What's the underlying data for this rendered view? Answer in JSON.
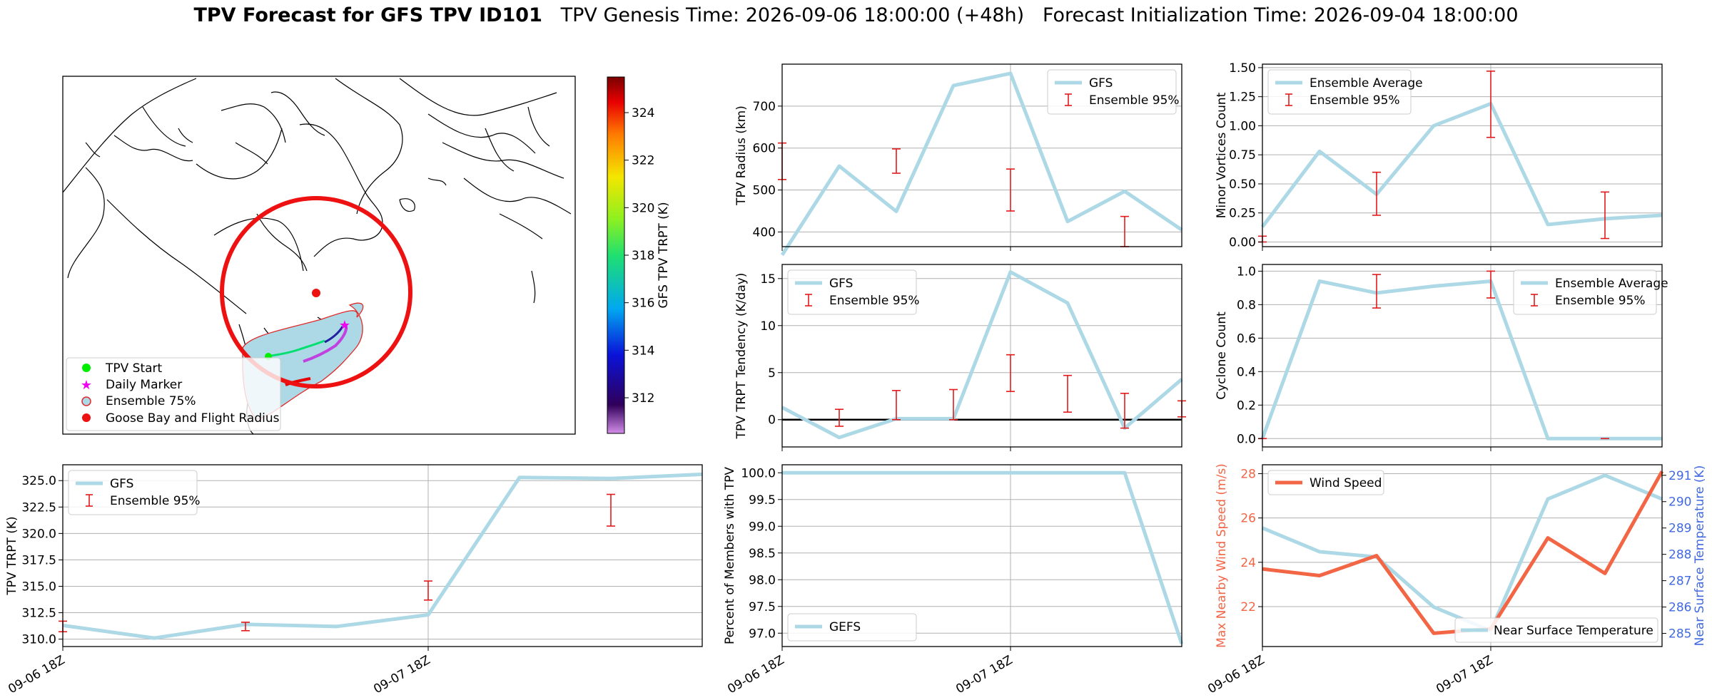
{
  "title": {
    "bold": "TPV Forecast for GFS TPV ID101",
    "genesis": "TPV Genesis Time: 2026-09-06 18:00:00 (+48h)",
    "init": "Forecast Initialization Time: 2026-09-04 18:00:00"
  },
  "map": {
    "colorbar_label": "GFS TPV TRPT (K)",
    "colorbar_ticks": [
      312,
      314,
      316,
      318,
      320,
      322,
      324
    ],
    "colorbar_range": [
      310.5,
      325.5
    ],
    "legend": [
      "TPV Start",
      "Daily Marker",
      "Ensemble 75%",
      "Goose Bay and Flight Radius"
    ],
    "colors": {
      "ring": "#ee1111",
      "ensemble_fill": "#add8e6",
      "start": "#00ee00",
      "marker": "#ee00ee",
      "goose_bay": "#ee1111"
    }
  },
  "x_tick_labels": [
    "09-06 18Z",
    "09-07 18Z"
  ],
  "colors": {
    "gfs": "#add8e6",
    "ensemble": "#e31a1c",
    "wind": "#f26545",
    "temp_axis": "#4169e1"
  },
  "chart_data": [
    {
      "id": "radius",
      "type": "line",
      "ylabel": "TPV Radius (km)",
      "ylim": [
        365,
        800
      ],
      "yticks": [
        400,
        500,
        600,
        700
      ],
      "legend": [
        "GFS",
        "Ensemble 95%"
      ],
      "legend_pos": "top-right",
      "x": [
        0,
        1,
        2,
        3,
        4,
        5,
        6,
        7
      ],
      "values": [
        345,
        557,
        449,
        749,
        778,
        425,
        497,
        405
      ],
      "errors": [
        {
          "x": 0,
          "lo": 525,
          "hi": 612
        },
        {
          "x": 2,
          "lo": 540,
          "hi": 598
        },
        {
          "x": 4,
          "lo": 450,
          "hi": 550
        },
        {
          "x": 6,
          "lo": 365,
          "hi": 437
        }
      ]
    },
    {
      "id": "minor",
      "type": "line",
      "ylabel": "Minor Vortices Count",
      "ylim": [
        -0.04,
        1.53
      ],
      "yticks": [
        0.0,
        0.25,
        0.5,
        0.75,
        1.0,
        1.25,
        1.5
      ],
      "legend": [
        "Ensemble Average",
        "Ensemble 95%"
      ],
      "legend_pos": "top-left",
      "x": [
        0,
        1,
        2,
        3,
        4,
        5,
        6,
        7
      ],
      "values": [
        0.13,
        0.78,
        0.41,
        1.0,
        1.19,
        0.15,
        0.2,
        0.23
      ],
      "errors": [
        {
          "x": 0,
          "lo": 0.0,
          "hi": 0.05
        },
        {
          "x": 2,
          "lo": 0.23,
          "hi": 0.6
        },
        {
          "x": 4,
          "lo": 0.9,
          "hi": 1.47
        },
        {
          "x": 6,
          "lo": 0.03,
          "hi": 0.43
        }
      ]
    },
    {
      "id": "tendency",
      "type": "line",
      "ylabel": "TPV TRPT Tendency (K/day)",
      "ylim": [
        -2.9,
        16.5
      ],
      "yticks": [
        0,
        5,
        10,
        15
      ],
      "legend": [
        "GFS",
        "Ensemble 95%"
      ],
      "legend_pos": "top-left",
      "x": [
        0,
        1,
        2,
        3,
        4,
        5,
        6,
        7
      ],
      "values": [
        1.3,
        -1.9,
        0.1,
        0.1,
        15.7,
        12.4,
        -0.9,
        4.3
      ],
      "errors": [
        {
          "x": 1,
          "lo": -0.7,
          "hi": 1.1
        },
        {
          "x": 2,
          "lo": 0.0,
          "hi": 3.1
        },
        {
          "x": 3,
          "lo": 0.0,
          "hi": 3.2
        },
        {
          "x": 4,
          "lo": 3.0,
          "hi": 6.9
        },
        {
          "x": 5,
          "lo": 0.8,
          "hi": 4.7
        },
        {
          "x": 6,
          "lo": -0.9,
          "hi": 2.8
        },
        {
          "x": 7,
          "lo": 0.3,
          "hi": 2.0
        }
      ]
    },
    {
      "id": "cyclone",
      "type": "line",
      "ylabel": "Cyclone Count",
      "ylim": [
        -0.05,
        1.04
      ],
      "yticks": [
        0.0,
        0.2,
        0.4,
        0.6,
        0.8,
        1.0
      ],
      "legend": [
        "Ensemble Average",
        "Ensemble 95%"
      ],
      "legend_pos": "top-right",
      "x": [
        0,
        1,
        2,
        3,
        4,
        5,
        6,
        7
      ],
      "values": [
        0.0,
        0.94,
        0.87,
        0.91,
        0.94,
        0.0,
        0.0,
        0.0
      ],
      "errors": [
        {
          "x": 0,
          "lo": 0.0,
          "hi": 0.0
        },
        {
          "x": 2,
          "lo": 0.78,
          "hi": 0.98
        },
        {
          "x": 4,
          "lo": 0.84,
          "hi": 1.0
        },
        {
          "x": 6,
          "lo": 0.0,
          "hi": 0.0
        }
      ]
    },
    {
      "id": "trpt",
      "type": "line",
      "ylabel": "TPV TRPT (K)",
      "ylim": [
        309.3,
        326.5
      ],
      "yticks": [
        310.0,
        312.5,
        315.0,
        317.5,
        320.0,
        322.5,
        325.0
      ],
      "legend": [
        "GFS",
        "Ensemble 95%"
      ],
      "legend_pos": "top-left",
      "x": [
        0,
        1,
        2,
        3,
        4,
        5,
        6,
        7
      ],
      "values": [
        311.3,
        310.1,
        311.4,
        311.2,
        312.3,
        325.3,
        325.2,
        325.6
      ],
      "errors": [
        {
          "x": 0,
          "lo": 310.7,
          "hi": 311.7
        },
        {
          "x": 2,
          "lo": 310.8,
          "hi": 311.6
        },
        {
          "x": 4,
          "lo": 313.7,
          "hi": 315.5
        },
        {
          "x": 6,
          "lo": 320.7,
          "hi": 323.7
        }
      ]
    },
    {
      "id": "percent",
      "type": "line",
      "ylabel": "Percent of Members with TPV",
      "ylim": [
        96.75,
        100.15
      ],
      "yticks": [
        97.0,
        97.5,
        98.0,
        98.5,
        99.0,
        99.5,
        100.0
      ],
      "legend": [
        "GEFS"
      ],
      "legend_pos": "bottom-left",
      "x": [
        0,
        1,
        2,
        3,
        4,
        5,
        6,
        7
      ],
      "values": [
        100,
        100,
        100,
        100,
        100,
        100,
        100,
        96.8
      ],
      "errors": []
    },
    {
      "id": "wind",
      "type": "line",
      "ylabel": "Max Nearby Wind Speed (m/s)",
      "ylabel_right": "Near Surface Temperature (K)",
      "ylim": [
        20.2,
        28.4
      ],
      "yticks": [
        22,
        24,
        26,
        28
      ],
      "ylim_right": [
        284.5,
        291.4
      ],
      "yticks_right": [
        285,
        286,
        287,
        288,
        289,
        290,
        291
      ],
      "legend": [
        "Wind Speed"
      ],
      "legend_right": [
        "Near Surface Temperature"
      ],
      "x": [
        0,
        1,
        2,
        3,
        4,
        5,
        6,
        7
      ],
      "wind": [
        23.7,
        23.4,
        24.3,
        20.8,
        21.0,
        25.1,
        23.5,
        28.1
      ],
      "temp": [
        289.0,
        288.1,
        287.9,
        286.0,
        285.1,
        290.1,
        291.0,
        290.1
      ]
    }
  ]
}
